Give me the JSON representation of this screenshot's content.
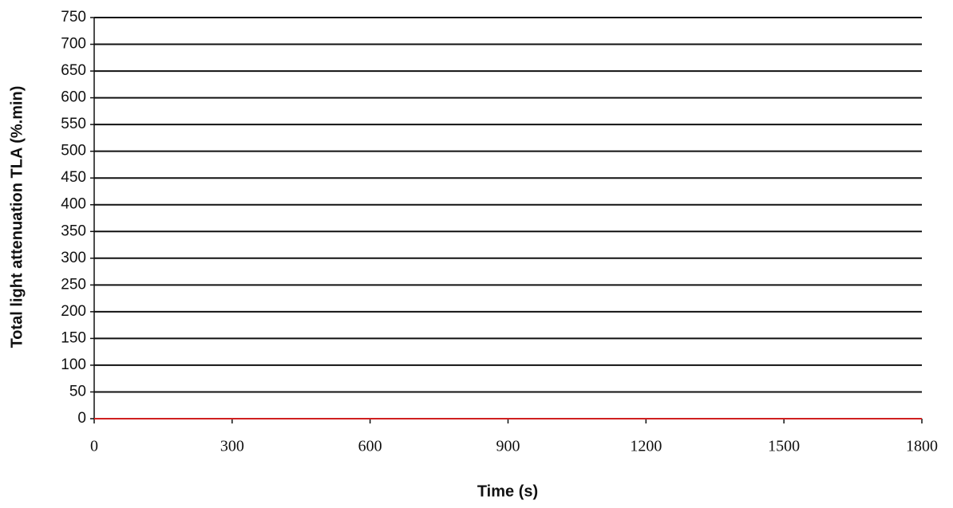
{
  "chart_data": {
    "type": "line",
    "x_label": "Time (s)",
    "y_label": "Total light attenuation  TLA (%.min)",
    "x": [
      0,
      300,
      600,
      900,
      1200,
      1500,
      1800
    ],
    "values": [
      0,
      0,
      0,
      0,
      0,
      0,
      0
    ],
    "color": "#d02020",
    "xlim": [
      0,
      1800
    ],
    "xticks": [
      0,
      300,
      600,
      900,
      1200,
      1500,
      1800
    ],
    "ylim": [
      0,
      750
    ],
    "yticks": [
      0,
      50,
      100,
      150,
      200,
      250,
      300,
      350,
      400,
      450,
      500,
      550,
      600,
      650,
      700,
      750
    ],
    "grid": true
  }
}
